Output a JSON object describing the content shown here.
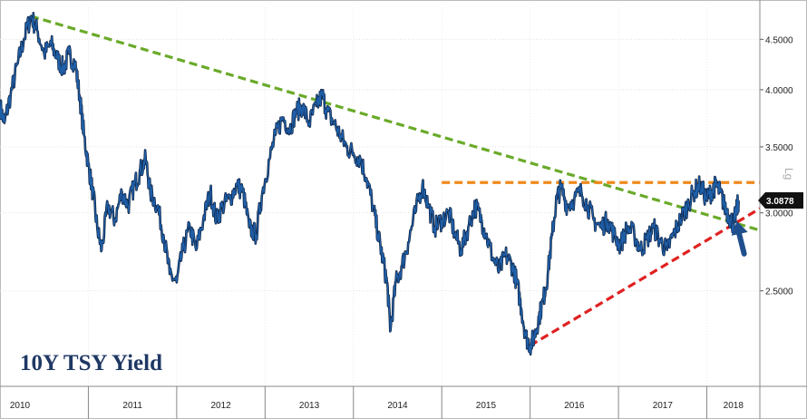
{
  "chart_data": {
    "type": "line",
    "title": "10Y TSY Yield",
    "scale": "log",
    "scale_label": "Lg",
    "ylim": [
      2.0,
      4.85
    ],
    "yticks": [
      "2.5000",
      "3.0000",
      "3.5000",
      "4.0000",
      "4.5000"
    ],
    "ytick_values": [
      2.5,
      3.0,
      3.5,
      4.0,
      4.5
    ],
    "xlim": [
      2010.0,
      2018.6
    ],
    "xtick_labels": [
      "2010",
      "2011",
      "2012",
      "2013",
      "2014",
      "2015",
      "2016",
      "2017",
      "2018"
    ],
    "xtick_positions": [
      2010.0,
      2011.0,
      2012.0,
      2013.0,
      2014.0,
      2015.0,
      2016.0,
      2017.0,
      2018.0
    ],
    "last_value": "3.0878",
    "series": [
      {
        "color": "#1f5fa8",
        "points": [
          [
            2010.0,
            3.85
          ],
          [
            2010.05,
            3.7
          ],
          [
            2010.12,
            3.95
          ],
          [
            2010.2,
            4.25
          ],
          [
            2010.27,
            4.5
          ],
          [
            2010.35,
            4.75
          ],
          [
            2010.42,
            4.6
          ],
          [
            2010.5,
            4.35
          ],
          [
            2010.58,
            4.45
          ],
          [
            2010.65,
            4.3
          ],
          [
            2010.72,
            4.2
          ],
          [
            2010.78,
            4.35
          ],
          [
            2010.85,
            4.25
          ],
          [
            2010.9,
            3.95
          ],
          [
            2010.95,
            3.6
          ],
          [
            2011.0,
            3.35
          ],
          [
            2011.05,
            3.15
          ],
          [
            2011.1,
            2.9
          ],
          [
            2011.15,
            2.75
          ],
          [
            2011.22,
            3.05
          ],
          [
            2011.3,
            2.95
          ],
          [
            2011.38,
            3.15
          ],
          [
            2011.45,
            3.05
          ],
          [
            2011.52,
            3.2
          ],
          [
            2011.58,
            3.3
          ],
          [
            2011.65,
            3.4
          ],
          [
            2011.7,
            3.15
          ],
          [
            2011.78,
            3.05
          ],
          [
            2011.85,
            2.85
          ],
          [
            2011.92,
            2.6
          ],
          [
            2012.0,
            2.55
          ],
          [
            2012.07,
            2.75
          ],
          [
            2012.15,
            2.9
          ],
          [
            2012.22,
            2.75
          ],
          [
            2012.3,
            2.95
          ],
          [
            2012.38,
            3.15
          ],
          [
            2012.45,
            2.95
          ],
          [
            2012.52,
            3.05
          ],
          [
            2012.6,
            3.1
          ],
          [
            2012.68,
            3.2
          ],
          [
            2012.75,
            3.15
          ],
          [
            2012.82,
            2.9
          ],
          [
            2012.9,
            2.85
          ],
          [
            2012.97,
            3.15
          ],
          [
            2013.05,
            3.4
          ],
          [
            2013.12,
            3.6
          ],
          [
            2013.2,
            3.75
          ],
          [
            2013.28,
            3.65
          ],
          [
            2013.35,
            3.8
          ],
          [
            2013.42,
            3.85
          ],
          [
            2013.5,
            3.7
          ],
          [
            2013.58,
            3.85
          ],
          [
            2013.65,
            3.95
          ],
          [
            2013.7,
            3.8
          ],
          [
            2013.78,
            3.7
          ],
          [
            2013.85,
            3.6
          ],
          [
            2013.92,
            3.5
          ],
          [
            2014.0,
            3.45
          ],
          [
            2014.08,
            3.4
          ],
          [
            2014.15,
            3.25
          ],
          [
            2014.22,
            3.05
          ],
          [
            2014.28,
            2.85
          ],
          [
            2014.33,
            2.7
          ],
          [
            2014.38,
            2.55
          ],
          [
            2014.42,
            2.28
          ],
          [
            2014.48,
            2.55
          ],
          [
            2014.55,
            2.65
          ],
          [
            2014.62,
            2.8
          ],
          [
            2014.7,
            3.0
          ],
          [
            2014.78,
            3.2
          ],
          [
            2014.85,
            3.05
          ],
          [
            2014.92,
            2.9
          ],
          [
            2015.0,
            2.95
          ],
          [
            2015.08,
            3.0
          ],
          [
            2015.15,
            2.85
          ],
          [
            2015.22,
            2.75
          ],
          [
            2015.3,
            2.9
          ],
          [
            2015.38,
            3.05
          ],
          [
            2015.45,
            2.95
          ],
          [
            2015.5,
            2.85
          ],
          [
            2015.58,
            2.7
          ],
          [
            2015.65,
            2.62
          ],
          [
            2015.72,
            2.72
          ],
          [
            2015.8,
            2.65
          ],
          [
            2015.85,
            2.55
          ],
          [
            2015.9,
            2.4
          ],
          [
            2015.95,
            2.25
          ],
          [
            2016.0,
            2.2
          ],
          [
            2016.05,
            2.25
          ],
          [
            2016.1,
            2.35
          ],
          [
            2016.15,
            2.45
          ],
          [
            2016.2,
            2.6
          ],
          [
            2016.25,
            2.85
          ],
          [
            2016.3,
            3.1
          ],
          [
            2016.35,
            3.18
          ],
          [
            2016.42,
            3.05
          ],
          [
            2016.5,
            3.1
          ],
          [
            2016.58,
            3.15
          ],
          [
            2016.65,
            3.05
          ],
          [
            2016.72,
            2.95
          ],
          [
            2016.8,
            2.9
          ],
          [
            2016.88,
            2.95
          ],
          [
            2016.95,
            2.85
          ],
          [
            2017.02,
            2.78
          ],
          [
            2017.1,
            2.9
          ],
          [
            2017.18,
            2.85
          ],
          [
            2017.25,
            2.75
          ],
          [
            2017.32,
            2.82
          ],
          [
            2017.4,
            2.9
          ],
          [
            2017.48,
            2.8
          ],
          [
            2017.55,
            2.75
          ],
          [
            2017.62,
            2.85
          ],
          [
            2017.7,
            2.95
          ],
          [
            2017.78,
            3.05
          ],
          [
            2017.85,
            3.15
          ],
          [
            2017.92,
            3.2
          ],
          [
            2018.0,
            3.1
          ],
          [
            2018.05,
            3.15
          ],
          [
            2018.1,
            3.2
          ],
          [
            2018.15,
            3.15
          ],
          [
            2018.2,
            3.05
          ],
          [
            2018.25,
            2.98
          ],
          [
            2018.3,
            2.92
          ],
          [
            2018.33,
            3.0
          ],
          [
            2018.36,
            3.0878
          ]
        ]
      }
    ],
    "trendlines": [
      {
        "color": "#6aaa2a",
        "style": "dashed",
        "from": [
          2010.35,
          4.75
        ],
        "to": [
          2018.6,
          2.88
        ]
      },
      {
        "color": "#f08a1c",
        "style": "dashed",
        "from": [
          2015.0,
          3.22
        ],
        "to": [
          2018.6,
          3.22
        ]
      },
      {
        "color": "#e02020",
        "style": "dashed",
        "from": [
          2016.0,
          2.2
        ],
        "to": [
          2018.6,
          3.03
        ]
      }
    ],
    "arrow": {
      "color": "#1f4e8c",
      "at": [
        2018.34,
        2.93
      ]
    }
  }
}
